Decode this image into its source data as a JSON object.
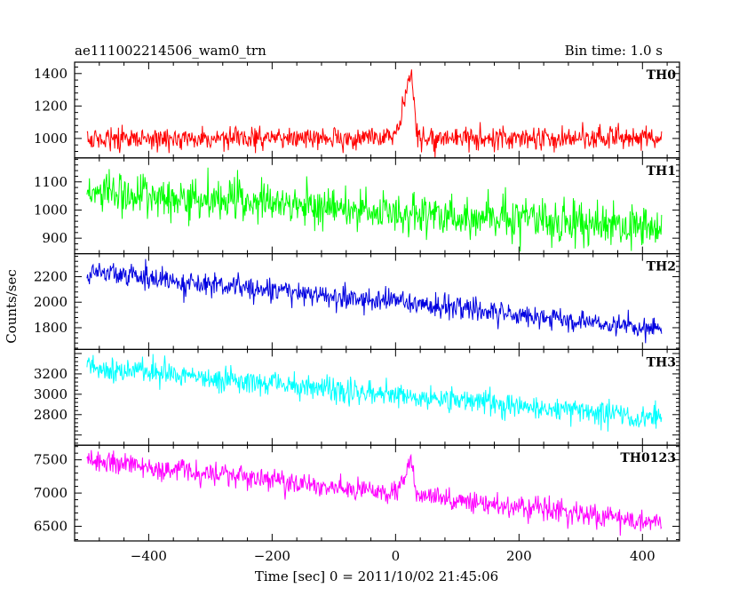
{
  "header": {
    "left_title": "ae111002214506_wam0_trn",
    "right_title": "Bin time: 1.0 s"
  },
  "chart_data": {
    "type": "line",
    "xlabel": "Time [sec] 0 = 2011/10/02 21:45:06",
    "ylabel": "Counts/sec",
    "xlim": [
      -520,
      460
    ],
    "x_ticks": [
      -400,
      -200,
      0,
      200,
      400
    ],
    "x_range": [
      -500,
      431
    ],
    "bin_time_s": 1.0,
    "grid": false,
    "panels": [
      {
        "name": "TH0",
        "color": "#ff0000",
        "ylim": [
          880,
          1470
        ],
        "y_ticks": [
          1000,
          1200,
          1400
        ],
        "baseline_start": 1000,
        "baseline_end": 1000,
        "noise_sd": 35,
        "burst": {
          "start": -5,
          "peak_time": 25,
          "end": 35,
          "peak_value": 1440
        }
      },
      {
        "name": "TH1",
        "color": "#00ff00",
        "ylim": [
          845,
          1185
        ],
        "y_ticks": [
          900,
          1000,
          1100
        ],
        "baseline_start": 1065,
        "baseline_end": 935,
        "noise_sd": 38
      },
      {
        "name": "TH2",
        "color": "#0000e0",
        "ylim": [
          1630,
          2380
        ],
        "y_ticks": [
          1800,
          2000,
          2200
        ],
        "baseline_start": 2240,
        "baseline_end": 1790,
        "noise_sd": 45
      },
      {
        "name": "TH3",
        "color": "#00ffff",
        "ylim": [
          2500,
          3440
        ],
        "y_ticks": [
          2800,
          3000,
          3200
        ],
        "baseline_start": 3270,
        "baseline_end": 2760,
        "noise_sd": 60
      },
      {
        "name": "TH0123",
        "color": "#ff00ff",
        "ylim": [
          6280,
          7720
        ],
        "y_ticks": [
          6500,
          7000,
          7500
        ],
        "baseline_start": 7500,
        "baseline_end": 6550,
        "noise_sd": 85,
        "burst": {
          "start": -5,
          "peak_time": 25,
          "end": 35,
          "peak_value": 7470
        }
      }
    ]
  }
}
